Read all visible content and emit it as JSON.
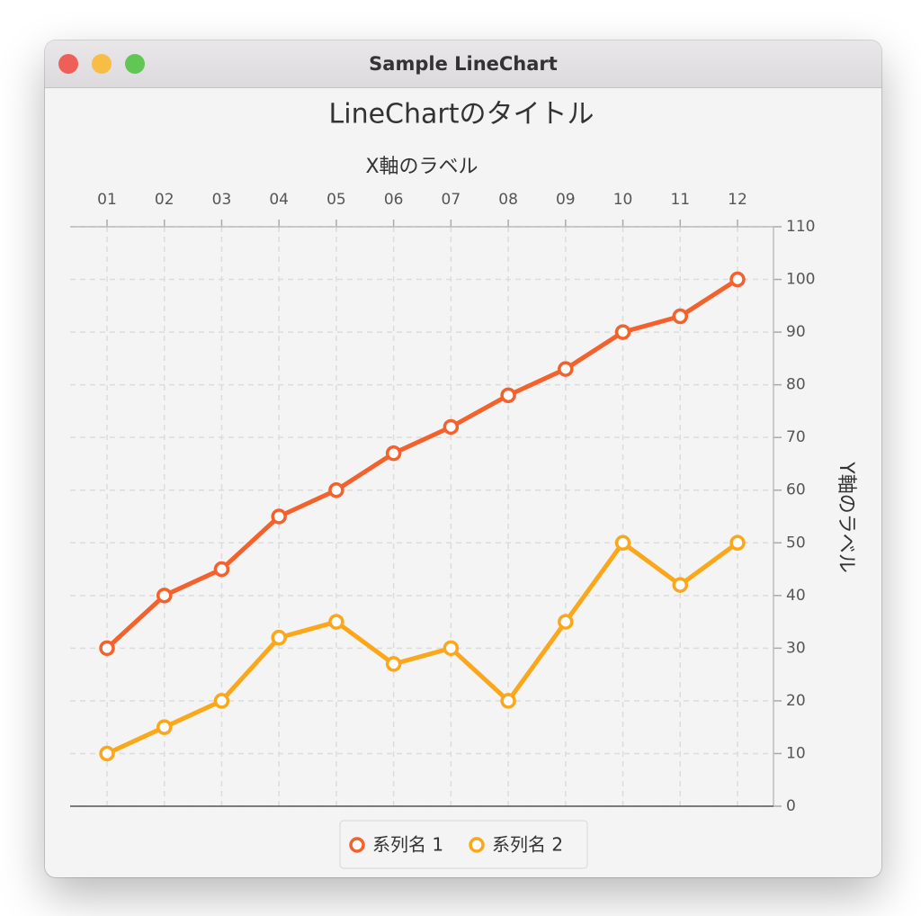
{
  "window_title": "Sample LineChart",
  "chart_data": {
    "type": "line",
    "title": "LineChartのタイトル",
    "x_label": "X軸のラベル",
    "y_label": "Y軸のラベル",
    "x_axis_position": "top",
    "y_axis_position": "right",
    "categories": [
      "01",
      "02",
      "03",
      "04",
      "05",
      "06",
      "07",
      "08",
      "09",
      "10",
      "11",
      "12"
    ],
    "series": [
      {
        "name": "系列名 1",
        "color": "#f3622d",
        "values": [
          30,
          40,
          45,
          55,
          60,
          67,
          72,
          78,
          83,
          90,
          93,
          100
        ]
      },
      {
        "name": "系列名 2",
        "color": "#fba71b",
        "values": [
          10,
          15,
          20,
          32,
          35,
          27,
          30,
          20,
          35,
          50,
          42,
          50
        ]
      }
    ],
    "ylim": [
      0,
      110
    ],
    "yticks": [
      0,
      10,
      20,
      30,
      40,
      50,
      60,
      70,
      80,
      90,
      100,
      110
    ],
    "grid": true,
    "legend": "bottom"
  }
}
